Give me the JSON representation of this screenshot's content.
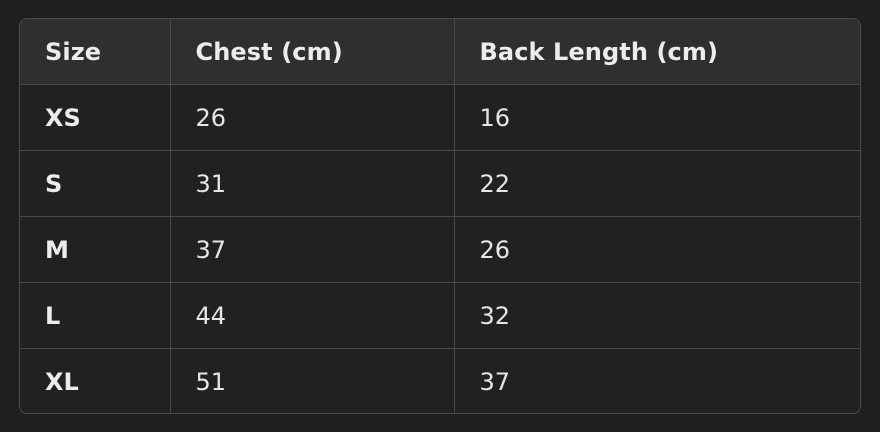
{
  "table": {
    "headers": [
      "Size",
      "Chest (cm)",
      "Back Length (cm)"
    ],
    "rows": [
      [
        "XS",
        "26",
        "16"
      ],
      [
        "S",
        "31",
        "22"
      ],
      [
        "M",
        "37",
        "26"
      ],
      [
        "L",
        "44",
        "32"
      ],
      [
        "XL",
        "51",
        "37"
      ]
    ]
  },
  "colors": {
    "background": "#1f1f1f",
    "header_background": "#2f2f2f",
    "border": "#4a4a4a",
    "text": "#ececec"
  }
}
